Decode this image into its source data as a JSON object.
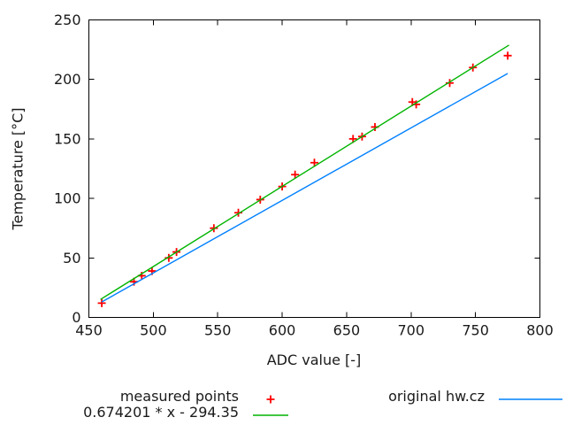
{
  "chart_data": {
    "type": "scatter",
    "title": "",
    "xlabel": "ADC value [-]",
    "ylabel": "Temperature [°C]",
    "xlim": [
      450,
      800
    ],
    "ylim": [
      0,
      250
    ],
    "xticks": [
      450,
      500,
      550,
      600,
      650,
      700,
      750,
      800
    ],
    "yticks": [
      0,
      50,
      100,
      150,
      200,
      250
    ],
    "grid": false,
    "legend_position": "below-plot, two columns",
    "series": [
      {
        "name": "measured points",
        "type": "points",
        "marker": "plus",
        "color": "#ff0000",
        "points": [
          [
            460,
            12
          ],
          [
            485,
            30
          ],
          [
            491,
            35
          ],
          [
            499,
            39
          ],
          [
            512,
            50
          ],
          [
            518,
            55
          ],
          [
            547,
            75
          ],
          [
            566,
            88
          ],
          [
            583,
            99
          ],
          [
            600,
            110
          ],
          [
            610,
            120
          ],
          [
            625,
            130
          ],
          [
            655,
            150
          ],
          [
            662,
            152
          ],
          [
            672,
            160
          ],
          [
            701,
            181
          ],
          [
            704,
            179
          ],
          [
            730,
            197
          ],
          [
            748,
            210
          ],
          [
            775,
            220
          ]
        ]
      },
      {
        "name": "0.674201 * x - 294.35",
        "type": "line",
        "color": "#00b400",
        "slope": 0.674201,
        "intercept": -294.35,
        "x_start": 459,
        "x_end": 776
      },
      {
        "name": "original hw.cz",
        "type": "line",
        "color": "#0080ff",
        "endpoints": [
          [
            460,
            13
          ],
          [
            775,
            205
          ]
        ]
      }
    ]
  },
  "colors": {
    "axis": "#000000",
    "text": "#1a1a1a",
    "background": "#ffffff",
    "measured": "#ff0000",
    "fit_line": "#00b400",
    "original_line": "#0080ff"
  }
}
